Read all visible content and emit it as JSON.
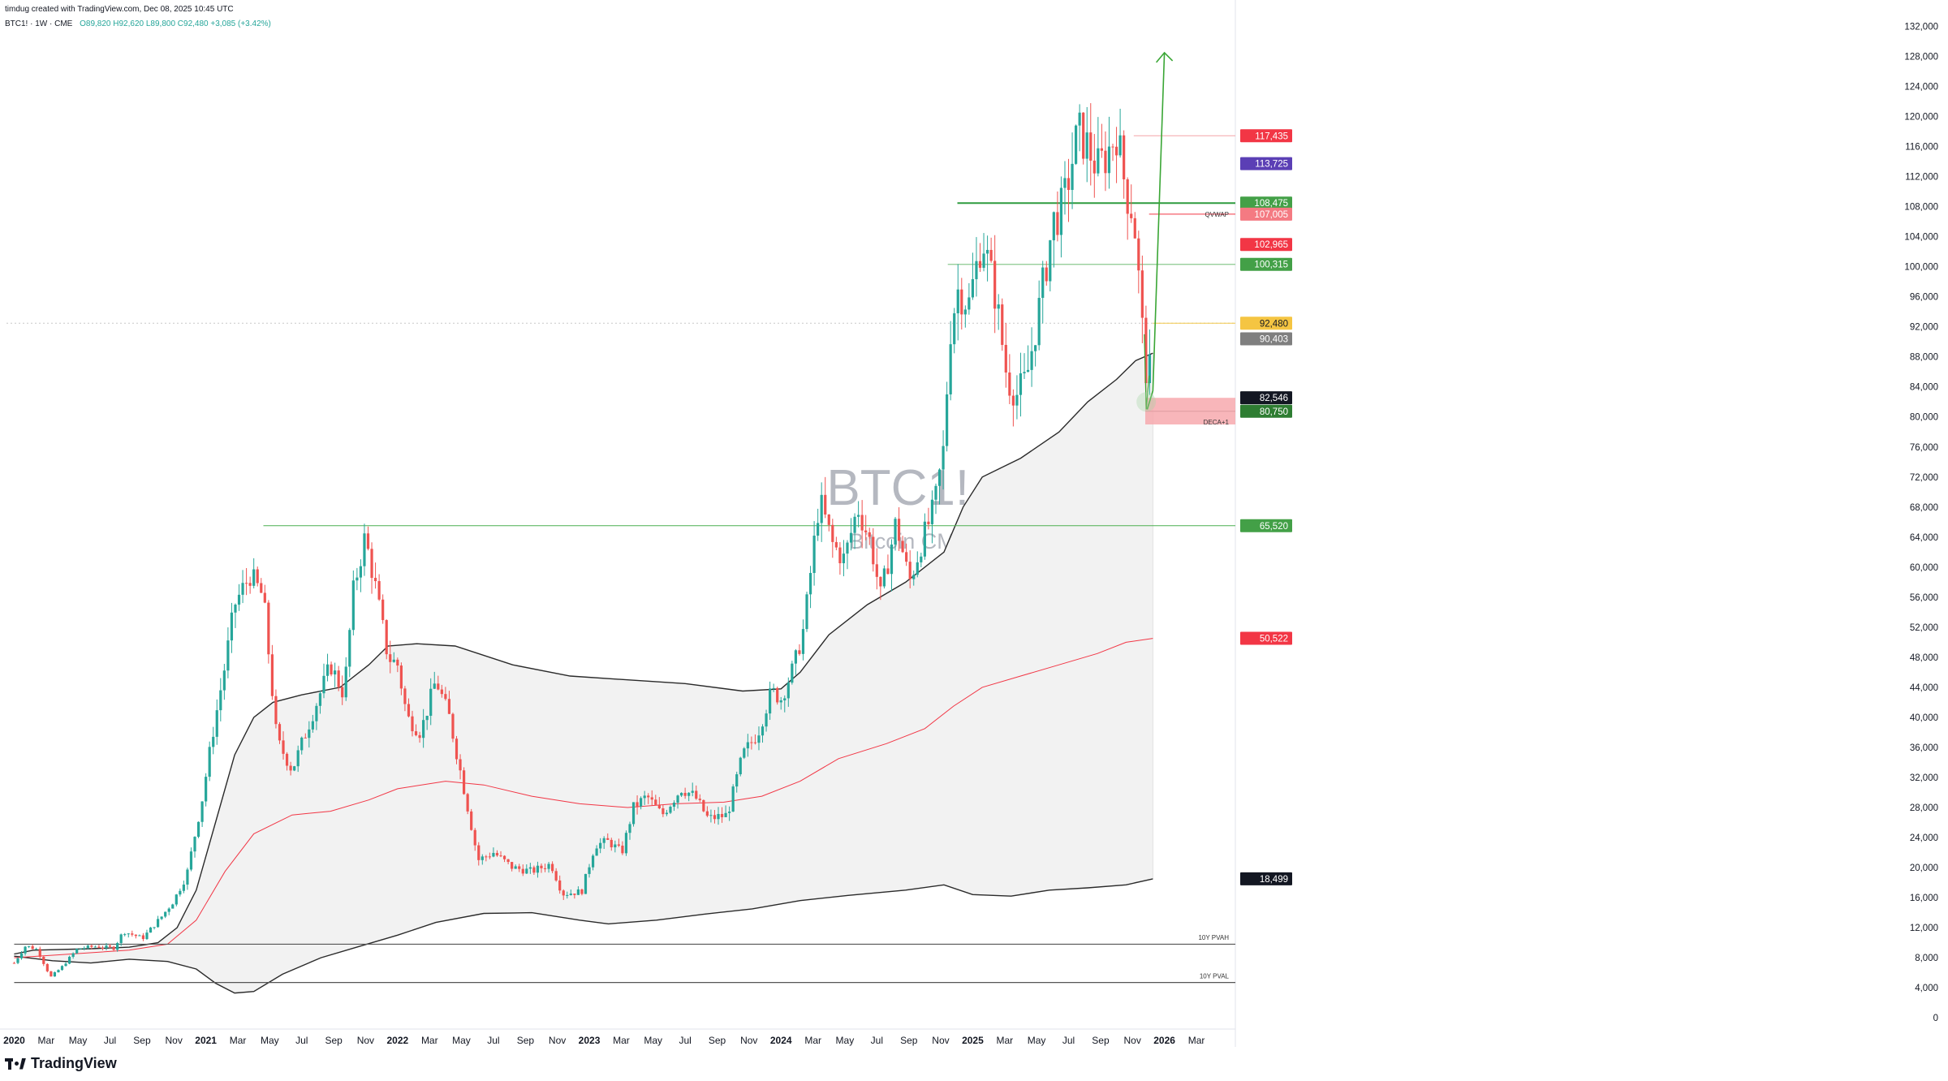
{
  "header": {
    "created_by": "timdug created with TradingView.com, Dec 08, 2025 10:45 UTC",
    "symbol_line": "BTC1! · 1W · CME",
    "ohlc": "O89,820 H92,620 L89,800 C92,480 +3,085 (+3.42%)"
  },
  "branding": {
    "logo_text": "TradingView"
  },
  "chart_data": {
    "type": "candlestick",
    "watermark_title": "BTC1!, 1W",
    "watermark_subtitle": "Bitcoin CME Futures",
    "y_ticks": [
      0,
      4000,
      8000,
      12000,
      16000,
      20000,
      24000,
      28000,
      32000,
      36000,
      40000,
      44000,
      48000,
      52000,
      56000,
      60000,
      64000,
      68000,
      72000,
      76000,
      80000,
      84000,
      88000,
      92000,
      96000,
      100000,
      104000,
      108000,
      112000,
      116000,
      120000,
      124000,
      128000,
      132000
    ],
    "y_tick_labels": [
      "0",
      "4,000",
      "8,000",
      "12,000",
      "16,000",
      "20,000",
      "24,000",
      "28,000",
      "32,000",
      "36,000",
      "40,000",
      "44,000",
      "48,000",
      "52,000",
      "56,000",
      "60,000",
      "64,000",
      "68,000",
      "72,000",
      "76,000",
      "80,000",
      "84,000",
      "88,000",
      "92,000",
      "96,000",
      "100,000",
      "104,000",
      "108,000",
      "112,000",
      "116,000",
      "120,000",
      "124,000",
      "128,000",
      "132,000"
    ],
    "ylim": [
      -1500,
      134000
    ],
    "xlim": [
      2019.96,
      2026.37
    ],
    "x_ticks": [
      {
        "label": "2020",
        "t": 2020.0,
        "bold": true
      },
      {
        "label": "Mar",
        "t": 2020.167
      },
      {
        "label": "May",
        "t": 2020.333
      },
      {
        "label": "Jul",
        "t": 2020.5
      },
      {
        "label": "Sep",
        "t": 2020.667
      },
      {
        "label": "Nov",
        "t": 2020.833
      },
      {
        "label": "2021",
        "t": 2021.0,
        "bold": true
      },
      {
        "label": "Mar",
        "t": 2021.167
      },
      {
        "label": "May",
        "t": 2021.333
      },
      {
        "label": "Jul",
        "t": 2021.5
      },
      {
        "label": "Sep",
        "t": 2021.667
      },
      {
        "label": "Nov",
        "t": 2021.833
      },
      {
        "label": "2022",
        "t": 2022.0,
        "bold": true
      },
      {
        "label": "Mar",
        "t": 2022.167
      },
      {
        "label": "May",
        "t": 2022.333
      },
      {
        "label": "Jul",
        "t": 2022.5
      },
      {
        "label": "Sep",
        "t": 2022.667
      },
      {
        "label": "Nov",
        "t": 2022.833
      },
      {
        "label": "2023",
        "t": 2023.0,
        "bold": true
      },
      {
        "label": "Mar",
        "t": 2023.167
      },
      {
        "label": "May",
        "t": 2023.333
      },
      {
        "label": "Jul",
        "t": 2023.5
      },
      {
        "label": "Sep",
        "t": 2023.667
      },
      {
        "label": "Nov",
        "t": 2023.833
      },
      {
        "label": "2024",
        "t": 2024.0,
        "bold": true
      },
      {
        "label": "Mar",
        "t": 2024.167
      },
      {
        "label": "May",
        "t": 2024.333
      },
      {
        "label": "Jul",
        "t": 2024.5
      },
      {
        "label": "Sep",
        "t": 2024.667
      },
      {
        "label": "Nov",
        "t": 2024.833
      },
      {
        "label": "2025",
        "t": 2025.0,
        "bold": true
      },
      {
        "label": "Mar",
        "t": 2025.167
      },
      {
        "label": "May",
        "t": 2025.333
      },
      {
        "label": "Jul",
        "t": 2025.5
      },
      {
        "label": "Sep",
        "t": 2025.667
      },
      {
        "label": "Nov",
        "t": 2025.833
      },
      {
        "label": "2026",
        "t": 2026.0,
        "bold": true
      },
      {
        "label": "Mar",
        "t": 2026.167
      }
    ],
    "price_path": [
      [
        2020.0,
        7300
      ],
      [
        2020.06,
        9600
      ],
      [
        2020.12,
        9100
      ],
      [
        2020.19,
        5400
      ],
      [
        2020.25,
        6800
      ],
      [
        2020.33,
        9200
      ],
      [
        2020.42,
        9500
      ],
      [
        2020.52,
        9300
      ],
      [
        2020.57,
        11500
      ],
      [
        2020.67,
        10600
      ],
      [
        2020.77,
        13500
      ],
      [
        2020.83,
        15500
      ],
      [
        2020.9,
        19000
      ],
      [
        2020.98,
        29000
      ],
      [
        2021.03,
        37000
      ],
      [
        2021.1,
        47000
      ],
      [
        2021.15,
        55000
      ],
      [
        2021.23,
        59000
      ],
      [
        2021.3,
        56000
      ],
      [
        2021.37,
        37000
      ],
      [
        2021.45,
        33000
      ],
      [
        2021.55,
        40000
      ],
      [
        2021.65,
        47000
      ],
      [
        2021.72,
        43000
      ],
      [
        2021.77,
        57000
      ],
      [
        2021.83,
        64000
      ],
      [
        2021.88,
        58000
      ],
      [
        2021.95,
        48000
      ],
      [
        2022.0,
        47000
      ],
      [
        2022.05,
        40000
      ],
      [
        2022.12,
        38000
      ],
      [
        2022.2,
        45000
      ],
      [
        2022.27,
        40000
      ],
      [
        2022.35,
        30000
      ],
      [
        2022.42,
        21000
      ],
      [
        2022.5,
        22000
      ],
      [
        2022.6,
        20000
      ],
      [
        2022.7,
        19500
      ],
      [
        2022.8,
        20500
      ],
      [
        2022.86,
        16500
      ],
      [
        2022.96,
        16800
      ],
      [
        2023.03,
        23000
      ],
      [
        2023.1,
        23500
      ],
      [
        2023.17,
        22000
      ],
      [
        2023.23,
        28000
      ],
      [
        2023.3,
        29500
      ],
      [
        2023.38,
        27000
      ],
      [
        2023.48,
        30500
      ],
      [
        2023.55,
        29500
      ],
      [
        2023.62,
        26500
      ],
      [
        2023.72,
        27000
      ],
      [
        2023.8,
        35000
      ],
      [
        2023.88,
        38000
      ],
      [
        2023.95,
        43500
      ],
      [
        2024.0,
        42500
      ],
      [
        2024.07,
        47000
      ],
      [
        2024.12,
        52000
      ],
      [
        2024.2,
        69000
      ],
      [
        2024.27,
        63000
      ],
      [
        2024.33,
        61000
      ],
      [
        2024.4,
        68000
      ],
      [
        2024.47,
        63000
      ],
      [
        2024.52,
        56000
      ],
      [
        2024.6,
        66000
      ],
      [
        2024.67,
        58000
      ],
      [
        2024.73,
        63000
      ],
      [
        2024.8,
        68000
      ],
      [
        2024.85,
        76000
      ],
      [
        2024.88,
        91000
      ],
      [
        2024.92,
        97000
      ],
      [
        2024.98,
        95000
      ],
      [
        2025.05,
        104000
      ],
      [
        2025.12,
        96000
      ],
      [
        2025.18,
        85000
      ],
      [
        2025.23,
        83000
      ],
      [
        2025.28,
        85000
      ],
      [
        2025.35,
        95000
      ],
      [
        2025.42,
        106000
      ],
      [
        2025.47,
        108000
      ],
      [
        2025.55,
        118000
      ],
      [
        2025.6,
        116000
      ],
      [
        2025.65,
        113000
      ],
      [
        2025.7,
        115000
      ],
      [
        2025.75,
        118000
      ],
      [
        2025.8,
        110000
      ],
      [
        2025.84,
        107000
      ],
      [
        2025.87,
        97000
      ],
      [
        2025.9,
        86000
      ],
      [
        2025.93,
        89000
      ],
      [
        2025.94,
        92480
      ]
    ],
    "ma_outer_upper": [
      [
        2020.0,
        8500
      ],
      [
        2020.1,
        9000
      ],
      [
        2020.4,
        9200
      ],
      [
        2020.6,
        9400
      ],
      [
        2020.75,
        10000
      ],
      [
        2020.85,
        12000
      ],
      [
        2020.95,
        17000
      ],
      [
        2021.05,
        26000
      ],
      [
        2021.15,
        35000
      ],
      [
        2021.25,
        40000
      ],
      [
        2021.35,
        42000
      ],
      [
        2021.5,
        43000
      ],
      [
        2021.7,
        44000
      ],
      [
        2021.85,
        47000
      ],
      [
        2021.95,
        49500
      ],
      [
        2022.1,
        49800
      ],
      [
        2022.3,
        49500
      ],
      [
        2022.6,
        47000
      ],
      [
        2022.9,
        45500
      ],
      [
        2023.2,
        45000
      ],
      [
        2023.5,
        44500
      ],
      [
        2023.8,
        43500
      ],
      [
        2024.0,
        43800
      ],
      [
        2024.1,
        46000
      ],
      [
        2024.25,
        51000
      ],
      [
        2024.45,
        55000
      ],
      [
        2024.65,
        58000
      ],
      [
        2024.85,
        62000
      ],
      [
        2024.95,
        68000
      ],
      [
        2025.05,
        72000
      ],
      [
        2025.25,
        74500
      ],
      [
        2025.45,
        78000
      ],
      [
        2025.6,
        82000
      ],
      [
        2025.75,
        85000
      ],
      [
        2025.85,
        87500
      ],
      [
        2025.94,
        88500
      ]
    ],
    "ma_outer_lower": [
      [
        2020.0,
        8200
      ],
      [
        2020.2,
        7600
      ],
      [
        2020.4,
        7300
      ],
      [
        2020.6,
        7800
      ],
      [
        2020.8,
        7500
      ],
      [
        2020.95,
        6500
      ],
      [
        2021.05,
        4600
      ],
      [
        2021.15,
        3300
      ],
      [
        2021.25,
        3500
      ],
      [
        2021.4,
        5800
      ],
      [
        2021.6,
        8000
      ],
      [
        2021.8,
        9500
      ],
      [
        2022.0,
        11000
      ],
      [
        2022.2,
        12700
      ],
      [
        2022.45,
        13900
      ],
      [
        2022.7,
        14000
      ],
      [
        2022.95,
        13000
      ],
      [
        2023.1,
        12500
      ],
      [
        2023.35,
        13000
      ],
      [
        2023.6,
        13800
      ],
      [
        2023.85,
        14500
      ],
      [
        2024.1,
        15600
      ],
      [
        2024.35,
        16300
      ],
      [
        2024.65,
        17000
      ],
      [
        2024.85,
        17700
      ],
      [
        2025.0,
        16400
      ],
      [
        2025.2,
        16200
      ],
      [
        2025.4,
        17000
      ],
      [
        2025.6,
        17300
      ],
      [
        2025.8,
        17700
      ],
      [
        2025.94,
        18500
      ]
    ],
    "ma_middle": [
      [
        2020.0,
        8000
      ],
      [
        2020.3,
        8500
      ],
      [
        2020.6,
        9000
      ],
      [
        2020.8,
        9800
      ],
      [
        2020.95,
        13000
      ],
      [
        2021.1,
        19500
      ],
      [
        2021.25,
        24500
      ],
      [
        2021.45,
        27000
      ],
      [
        2021.65,
        27500
      ],
      [
        2021.85,
        29000
      ],
      [
        2022.0,
        30500
      ],
      [
        2022.25,
        31500
      ],
      [
        2022.45,
        31000
      ],
      [
        2022.7,
        29500
      ],
      [
        2022.95,
        28500
      ],
      [
        2023.2,
        28000
      ],
      [
        2023.45,
        28500
      ],
      [
        2023.7,
        28700
      ],
      [
        2023.9,
        29500
      ],
      [
        2024.1,
        31500
      ],
      [
        2024.3,
        34500
      ],
      [
        2024.55,
        36500
      ],
      [
        2024.75,
        38500
      ],
      [
        2024.9,
        41500
      ],
      [
        2025.05,
        44000
      ],
      [
        2025.25,
        45500
      ],
      [
        2025.45,
        47000
      ],
      [
        2025.65,
        48500
      ],
      [
        2025.8,
        50000
      ],
      [
        2025.94,
        50522
      ]
    ],
    "horizontal_lines": [
      {
        "price": 65520,
        "from": 2021.3,
        "color": "#4caf50",
        "width": 1
      },
      {
        "price": 108475,
        "from": 2024.92,
        "color": "#2e9b3f",
        "width": 2
      },
      {
        "price": 100315,
        "from": 2024.87,
        "color": "#8bc98f",
        "width": 1.2
      },
      {
        "price": 117435,
        "from": 2025.84,
        "color": "#f4a3a8",
        "width": 1
      },
      {
        "price": 107005,
        "from": 2025.92,
        "color": "#f23645",
        "width": 1
      },
      {
        "price": 92480,
        "from": 2025.94,
        "color": "#f2c74a",
        "width": 1
      },
      {
        "price": 80750,
        "from": 2025.9,
        "color": "#555555",
        "width": 1
      },
      {
        "price": 9800,
        "from": 2020.0,
        "color": "#555555",
        "width": 1.2
      },
      {
        "price": 4700,
        "from": 2020.0,
        "color": "#555555",
        "width": 1.2
      }
    ],
    "line_labels": [
      {
        "text": "QVWAP",
        "price": 107005
      },
      {
        "text": "DECA+1",
        "price": 79300
      },
      {
        "text": "10Y PVAH",
        "price": 10700
      },
      {
        "text": "10Y PVAL",
        "price": 5600
      }
    ],
    "zone": {
      "from": 2025.9,
      "top": 82546,
      "bottom": 79000,
      "color": "#f7a9ae"
    },
    "axis_tags": [
      {
        "price": 117435,
        "text": "117,435",
        "bg": "#f23645",
        "fg": "#ffffff"
      },
      {
        "price": 113725,
        "text": "113,725",
        "bg": "#5b3fb5",
        "fg": "#ffffff"
      },
      {
        "price": 108475,
        "text": "108,475",
        "bg": "#43a047",
        "fg": "#ffffff"
      },
      {
        "price": 107005,
        "text": "107,005",
        "bg": "#f47a82",
        "fg": "#ffffff"
      },
      {
        "price": 102965,
        "text": "102,965",
        "bg": "#f23645",
        "fg": "#ffffff"
      },
      {
        "price": 100315,
        "text": "100,315",
        "bg": "#43a047",
        "fg": "#ffffff"
      },
      {
        "price": 92480,
        "text": "92,480",
        "bg": "#f5c542",
        "fg": "#131722"
      },
      {
        "price": 90403,
        "text": "90,403",
        "bg": "#7f7f7f",
        "fg": "#ffffff"
      },
      {
        "price": 82546,
        "text": "82,546",
        "bg": "#131722",
        "fg": "#ffffff"
      },
      {
        "price": 80750,
        "text": "80,750",
        "bg": "#2e7d32",
        "fg": "#ffffff"
      },
      {
        "price": 65520,
        "text": "65,520",
        "bg": "#43a047",
        "fg": "#ffffff"
      },
      {
        "price": 50522,
        "text": "50,522",
        "bg": "#f23645",
        "fg": "#ffffff"
      },
      {
        "price": 18499,
        "text": "18,499",
        "bg": "#131722",
        "fg": "#ffffff"
      }
    ],
    "projection_arrow": [
      [
        2025.91,
        81000
      ],
      [
        2025.94,
        83500
      ],
      [
        2026.0,
        128500
      ]
    ],
    "colors": {
      "up": "#26a69a",
      "down": "#ef5350",
      "ma_outer": "#2a2a2a",
      "ma_middle": "#f23645",
      "band_fill": "#f2f2f2",
      "arrow": "#3aa635"
    }
  }
}
